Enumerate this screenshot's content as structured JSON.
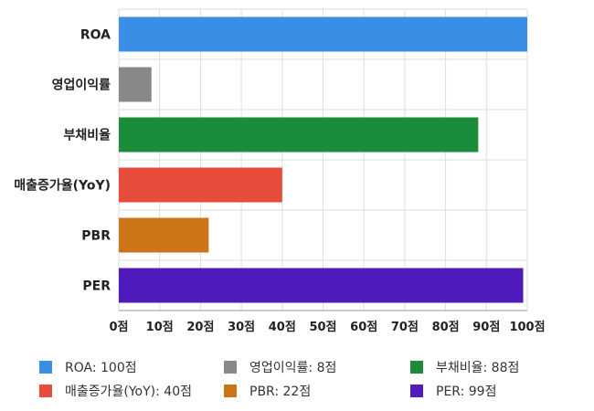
{
  "chart_data": {
    "type": "bar",
    "orientation": "horizontal",
    "categories": [
      "ROA",
      "영업이익률",
      "부채비율",
      "매출증가율(YoY)",
      "PBR",
      "PER"
    ],
    "values": [
      100,
      8,
      88,
      40,
      22,
      99
    ],
    "colors": [
      "#3a8ee6",
      "#888888",
      "#1a8c3a",
      "#e84c3d",
      "#cc7418",
      "#4f1bbd"
    ],
    "xlim": [
      0,
      100
    ],
    "x_ticks": [
      "0점",
      "10점",
      "20점",
      "30점",
      "40점",
      "50점",
      "60점",
      "70점",
      "80점",
      "90점",
      "100점"
    ],
    "grid": true,
    "legend_position": "bottom",
    "legend": [
      {
        "label": "ROA: 100점",
        "color": "#3a8ee6"
      },
      {
        "label": "영업이익률: 8점",
        "color": "#888888"
      },
      {
        "label": "부채비율: 88점",
        "color": "#1a8c3a"
      },
      {
        "label": "매출증가율(YoY): 40점",
        "color": "#e84c3d"
      },
      {
        "label": "PBR: 22점",
        "color": "#cc7418"
      },
      {
        "label": "PER: 99점",
        "color": "#4f1bbd"
      }
    ]
  }
}
